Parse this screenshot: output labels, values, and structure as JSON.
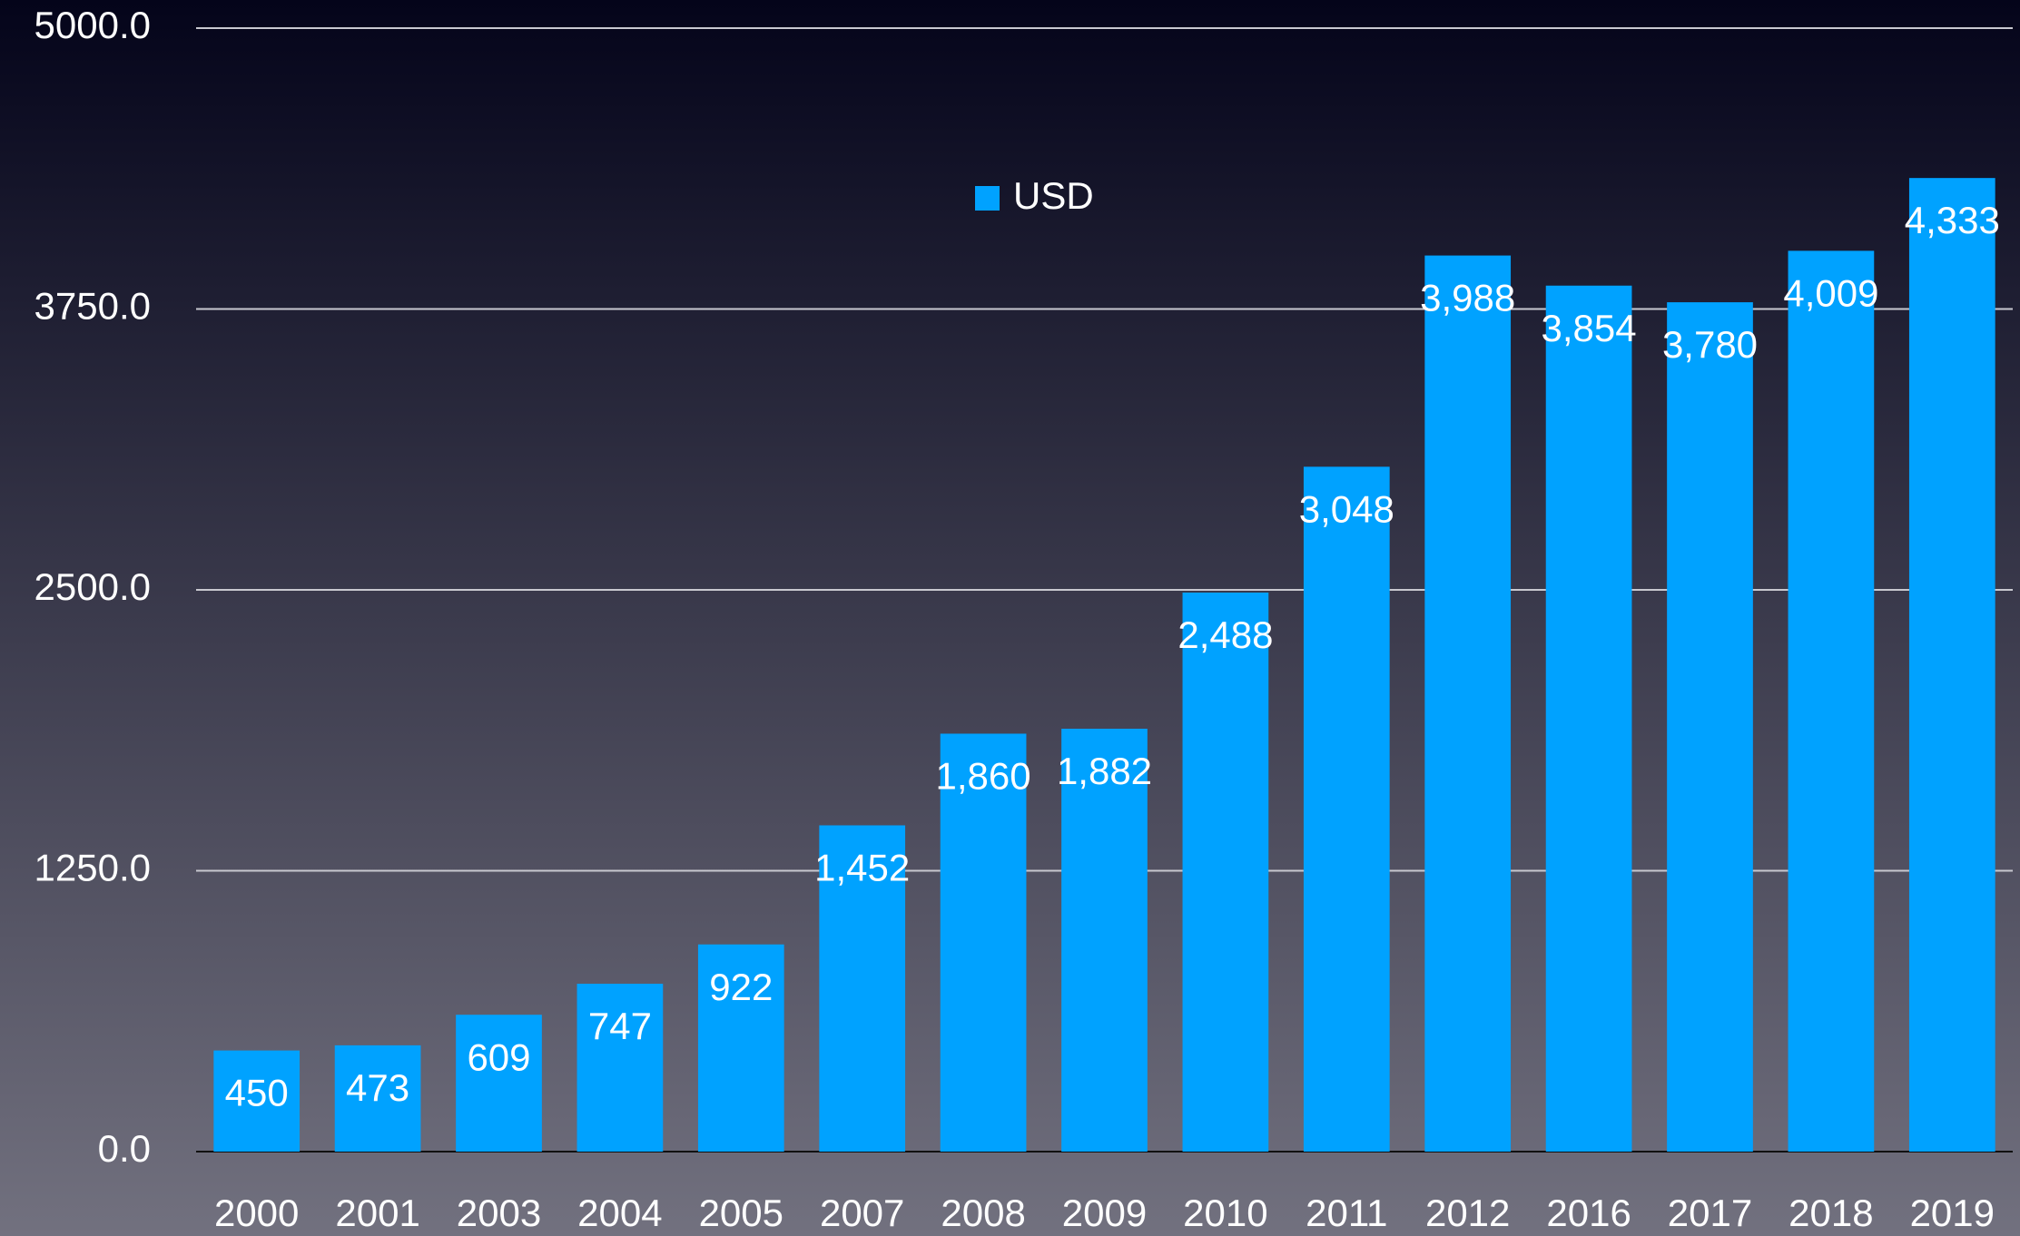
{
  "chart_data": {
    "type": "bar",
    "categories": [
      "2000",
      "2001",
      "2003",
      "2004",
      "2005",
      "2007",
      "2008",
      "2009",
      "2010",
      "2011",
      "2012",
      "2016",
      "2017",
      "2018",
      "2019"
    ],
    "series": [
      {
        "name": "USD",
        "color": "#00a2ff",
        "values": [
          450,
          473,
          609,
          747,
          922,
          1452,
          1860,
          1882,
          2488,
          3048,
          3988,
          3854,
          3780,
          4009,
          4333
        ],
        "value_labels": [
          "450",
          "473",
          "609",
          "747",
          "922",
          "1,452",
          "1,860",
          "1,882",
          "2,488",
          "3,048",
          "3,988",
          "3,854",
          "3,780",
          "4,009",
          "4,333"
        ]
      }
    ],
    "ylim": [
      0,
      5000
    ],
    "yticks": [
      {
        "value": 0,
        "label": "0.0"
      },
      {
        "value": 1250,
        "label": "1250.0"
      },
      {
        "value": 2500,
        "label": "2500.0"
      },
      {
        "value": 3750,
        "label": "3750.0"
      },
      {
        "value": 5000,
        "label": "5000.0"
      }
    ],
    "grid": true
  }
}
